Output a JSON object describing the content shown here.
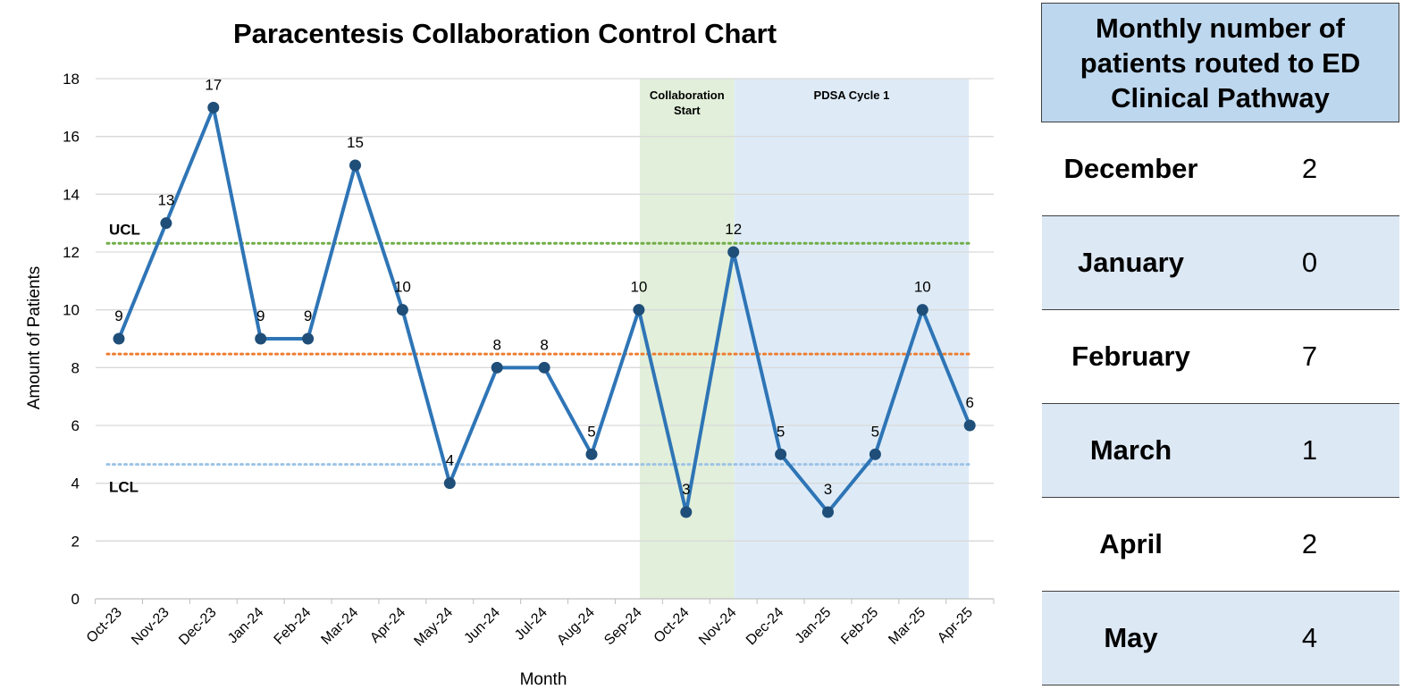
{
  "chart_data": {
    "type": "line",
    "title": "Paracentesis Collaboration Control Chart",
    "xlabel": "Month",
    "ylabel": "Amount of Patients",
    "categories": [
      "Oct-23",
      "Nov-23",
      "Dec-23",
      "Jan-24",
      "Feb-24",
      "Mar-24",
      "Apr-24",
      "May-24",
      "Jun-24",
      "Jul-24",
      "Aug-24",
      "Sep-24",
      "Oct-24",
      "Nov-24",
      "Dec-24",
      "Jan-25",
      "Feb-25",
      "Mar-25",
      "Apr-25"
    ],
    "values": [
      9,
      13,
      17,
      9,
      9,
      15,
      10,
      4,
      8,
      8,
      5,
      10,
      3,
      12,
      5,
      3,
      5,
      10,
      6
    ],
    "ylim": [
      0,
      18
    ],
    "yticks": [
      "0",
      "2",
      "4",
      "6",
      "8",
      "10",
      "12",
      "14",
      "16",
      "18"
    ],
    "grid": true,
    "control_lines": [
      {
        "label": "UCL",
        "value": 12.3,
        "color": "#70ad47"
      },
      {
        "label": "",
        "value": 8.47,
        "color": "#ed7d31"
      },
      {
        "label": "LCL",
        "value": 4.65,
        "color": "#9dc3e6"
      }
    ],
    "bands": [
      {
        "label": "Collaboration Start",
        "from": "Sep-24",
        "to": "Nov-24",
        "color": "#e2efda"
      },
      {
        "label": "PDSA Cycle 1",
        "from": "Nov-24",
        "to": "Apr-25",
        "color": "#deebf7"
      }
    ],
    "line_color": "#2e75b6",
    "marker_color": "#1f4e79"
  },
  "side_table": {
    "header": "Monthly number of patients routed to ED Clinical Pathway",
    "rows": [
      {
        "month": "December",
        "count": "2"
      },
      {
        "month": "January",
        "count": "0"
      },
      {
        "month": "February",
        "count": "7"
      },
      {
        "month": "March",
        "count": "1"
      },
      {
        "month": "April",
        "count": "2"
      },
      {
        "month": "May",
        "count": "4"
      }
    ]
  }
}
